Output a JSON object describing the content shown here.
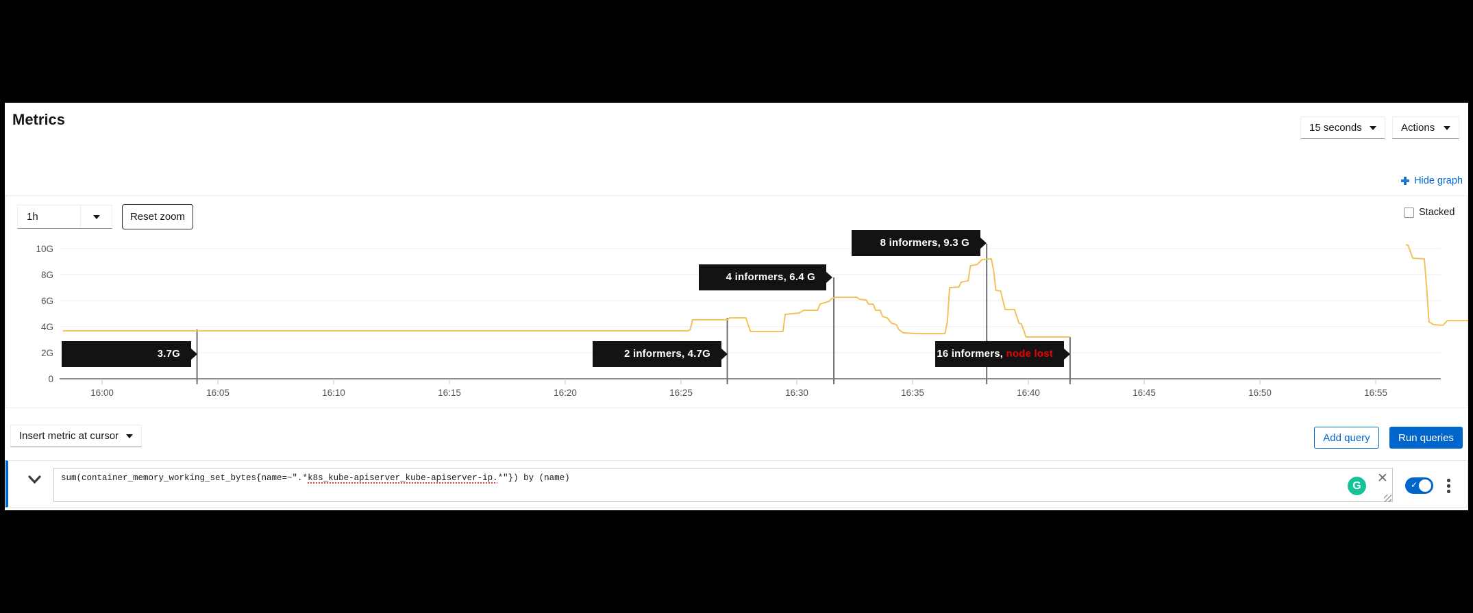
{
  "header": {
    "title": "Metrics",
    "interval": "15 seconds",
    "actions_label": "Actions",
    "hide_graph_label": "Hide graph"
  },
  "graph_controls": {
    "timespan": "1h",
    "reset_zoom_label": "Reset zoom",
    "stacked_label": "Stacked"
  },
  "chart_data": {
    "type": "line",
    "series_color": "#f4c158",
    "x_axis": {
      "ticks": [
        "16:00",
        "16:05",
        "16:10",
        "16:15",
        "16:20",
        "16:25",
        "16:30",
        "16:35",
        "16:40",
        "16:45",
        "16:50",
        "16:55"
      ],
      "tick_minutes": [
        0,
        5,
        10,
        15,
        20,
        25,
        30,
        35,
        40,
        45,
        50,
        55
      ]
    },
    "y_axis": {
      "ticks": [
        "0",
        "2G",
        "4G",
        "6G",
        "8G",
        "10G"
      ],
      "values": [
        0,
        2,
        4,
        6,
        8,
        10
      ],
      "ylim": [
        0,
        10.5
      ],
      "unit": "G"
    },
    "series": [
      {
        "name": "sum(container_memory_working_set_bytes{name=~\".*k8s_kube-apiserver_kube-apiserver-ip.*\"}) by (name)",
        "unit": "GB",
        "segments": [
          [
            [
              -1.7,
              3.68
            ],
            [
              25.3,
              3.68
            ],
            [
              25.4,
              3.79
            ],
            [
              25.5,
              4.53
            ],
            [
              27.0,
              4.53
            ],
            [
              27.1,
              4.68
            ],
            [
              27.8,
              4.68
            ],
            [
              28.0,
              3.63
            ],
            [
              29.4,
              3.63
            ],
            [
              29.5,
              4.95
            ],
            [
              30.1,
              5.05
            ],
            [
              30.3,
              5.26
            ],
            [
              30.9,
              5.26
            ],
            [
              31.0,
              5.74
            ],
            [
              31.4,
              5.95
            ],
            [
              31.5,
              6.16
            ],
            [
              31.7,
              6.26
            ],
            [
              32.6,
              6.26
            ],
            [
              32.7,
              6.11
            ],
            [
              33.0,
              6.05
            ],
            [
              33.1,
              5.74
            ],
            [
              33.3,
              5.74
            ],
            [
              33.4,
              5.26
            ],
            [
              33.6,
              5.26
            ],
            [
              33.7,
              4.79
            ],
            [
              33.9,
              4.68
            ],
            [
              34.1,
              4.26
            ],
            [
              34.3,
              4.16
            ],
            [
              34.4,
              3.79
            ],
            [
              34.6,
              3.53
            ],
            [
              35.2,
              3.47
            ],
            [
              36.4,
              3.47
            ],
            [
              36.5,
              4.37
            ],
            [
              36.6,
              7.0
            ],
            [
              37.0,
              7.05
            ],
            [
              37.1,
              7.42
            ],
            [
              37.4,
              7.53
            ],
            [
              37.5,
              8.68
            ],
            [
              37.8,
              8.79
            ],
            [
              38.0,
              9.16
            ],
            [
              38.4,
              9.21
            ],
            [
              38.5,
              8.32
            ],
            [
              38.6,
              6.79
            ],
            [
              38.8,
              6.74
            ],
            [
              39.0,
              5.32
            ],
            [
              39.4,
              5.32
            ],
            [
              39.6,
              4.26
            ],
            [
              39.7,
              4.21
            ],
            [
              39.9,
              3.21
            ],
            [
              41.8,
              3.21
            ]
          ],
          [
            [
              56.3,
              10.3
            ],
            [
              56.4,
              10.26
            ],
            [
              56.6,
              9.26
            ],
            [
              57.1,
              9.21
            ],
            [
              57.2,
              7.0
            ],
            [
              57.3,
              4.37
            ],
            [
              57.5,
              4.16
            ],
            [
              57.9,
              4.11
            ],
            [
              58.1,
              4.47
            ],
            [
              59.0,
              4.47
            ]
          ]
        ]
      }
    ],
    "annotations": [
      {
        "label": "3.7G",
        "highlight": "",
        "marker_min": 4.1,
        "value_g": 3.7
      },
      {
        "label": "2 informers, 4.7G",
        "highlight": "",
        "marker_min": 27.0,
        "value_g": 4.7
      },
      {
        "label": "4 informers, 6.4 G",
        "highlight": "",
        "marker_min": 31.6,
        "value_g": 6.4
      },
      {
        "label": "8 informers, 9.3 G",
        "highlight": "",
        "marker_min": 38.2,
        "value_g": 9.3
      },
      {
        "label": "16 informers, ",
        "highlight": "node lost",
        "marker_min": 41.8,
        "value_g": null
      }
    ]
  },
  "query_toolbar": {
    "insert_metric_label": "Insert metric at cursor",
    "add_query_label": "Add query",
    "run_queries_label": "Run queries"
  },
  "query_row": {
    "query_prefix": "sum(container_memory_working_set_bytes{name=~\".*",
    "query_misspelled": "k8s_kube-apiserver_kube-apiserver-ip.",
    "query_suffix": "*\"}) by (name)",
    "grammarly_letter": "G",
    "close_icon_glyph": "✕",
    "toggle_state": "on"
  },
  "colors": {
    "accent_blue": "#0066cc",
    "series_gold": "#f4c158",
    "tooltip_bg": "#131313",
    "node_lost_red": "#ee0000",
    "grammarly_green": "#15c39a"
  }
}
